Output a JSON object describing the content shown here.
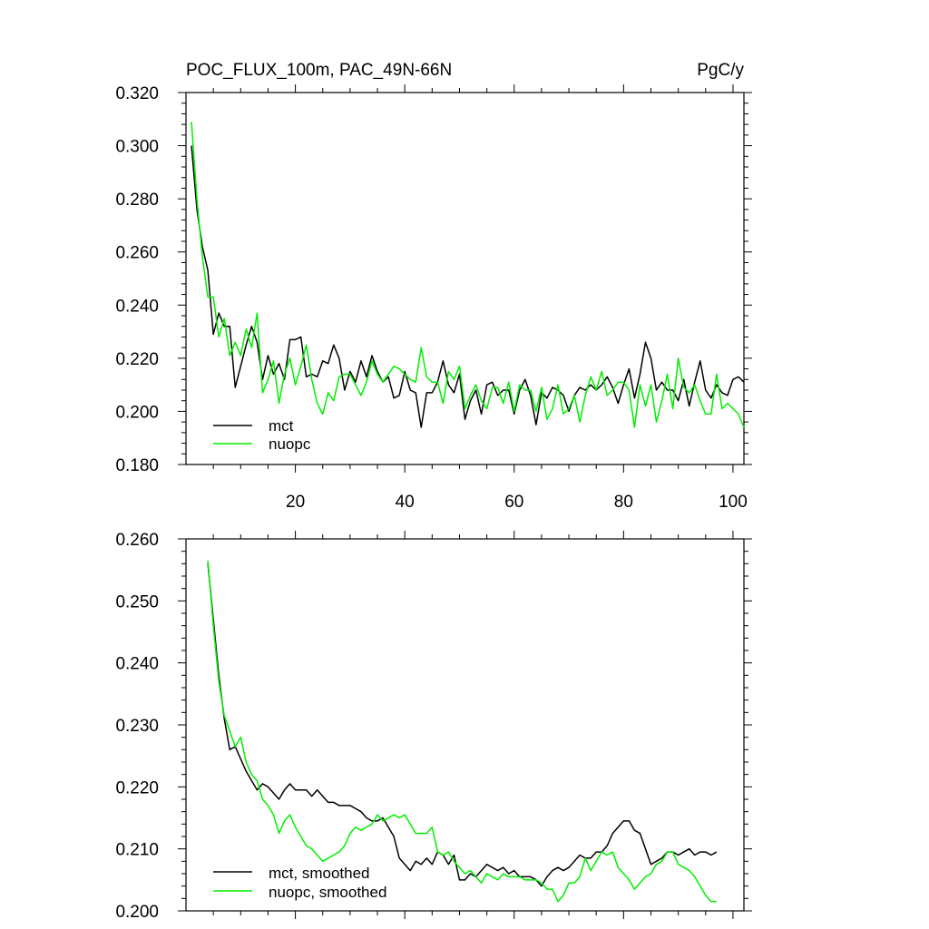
{
  "chart_data": [
    {
      "type": "line",
      "title": "POC_FLUX_100m, PAC_49N-66N",
      "units": "PgC/y",
      "xlim": [
        0,
        102
      ],
      "ylim": [
        0.18,
        0.32
      ],
      "xticks": [
        20,
        40,
        60,
        80,
        100
      ],
      "xtick_labels": [
        "20",
        "40",
        "60",
        "80",
        "100"
      ],
      "yticks": [
        0.18,
        0.2,
        0.22,
        0.24,
        0.26,
        0.28,
        0.3,
        0.32
      ],
      "ytick_labels": [
        "0.180",
        "0.200",
        "0.220",
        "0.240",
        "0.260",
        "0.280",
        "0.300",
        "0.320"
      ],
      "legend_position": "bottom-left",
      "x_start": 1,
      "series": [
        {
          "name": "mct",
          "color": "#000000",
          "values": [
            0.3,
            0.276,
            0.262,
            0.253,
            0.229,
            0.237,
            0.232,
            0.232,
            0.209,
            0.217,
            0.225,
            0.232,
            0.226,
            0.212,
            0.221,
            0.214,
            0.218,
            0.212,
            0.227,
            0.227,
            0.228,
            0.213,
            0.214,
            0.213,
            0.219,
            0.218,
            0.225,
            0.22,
            0.208,
            0.215,
            0.211,
            0.219,
            0.213,
            0.221,
            0.215,
            0.211,
            0.213,
            0.205,
            0.206,
            0.215,
            0.208,
            0.207,
            0.194,
            0.207,
            0.207,
            0.211,
            0.219,
            0.21,
            0.207,
            0.214,
            0.197,
            0.204,
            0.208,
            0.199,
            0.21,
            0.211,
            0.206,
            0.208,
            0.208,
            0.199,
            0.208,
            0.212,
            0.206,
            0.195,
            0.207,
            0.205,
            0.209,
            0.208,
            0.206,
            0.2,
            0.206,
            0.209,
            0.208,
            0.21,
            0.208,
            0.21,
            0.213,
            0.209,
            0.203,
            0.21,
            0.216,
            0.205,
            0.214,
            0.226,
            0.22,
            0.208,
            0.211,
            0.208,
            0.208,
            0.204,
            0.212,
            0.202,
            0.211,
            0.219,
            0.208,
            0.205,
            0.21,
            0.207,
            0.206,
            0.212,
            0.213,
            0.211
          ]
        },
        {
          "name": "nuopc",
          "color": "#00ee00",
          "values": [
            0.309,
            0.28,
            0.258,
            0.243,
            0.243,
            0.228,
            0.235,
            0.221,
            0.226,
            0.221,
            0.231,
            0.224,
            0.237,
            0.207,
            0.212,
            0.219,
            0.203,
            0.214,
            0.22,
            0.21,
            0.217,
            0.225,
            0.212,
            0.203,
            0.199,
            0.207,
            0.204,
            0.213,
            0.214,
            0.214,
            0.21,
            0.206,
            0.211,
            0.219,
            0.214,
            0.211,
            0.214,
            0.217,
            0.216,
            0.214,
            0.212,
            0.211,
            0.224,
            0.213,
            0.211,
            0.211,
            0.203,
            0.215,
            0.212,
            0.217,
            0.201,
            0.206,
            0.21,
            0.204,
            0.201,
            0.209,
            0.209,
            0.203,
            0.211,
            0.2,
            0.21,
            0.208,
            0.208,
            0.2,
            0.209,
            0.197,
            0.201,
            0.21,
            0.199,
            0.201,
            0.206,
            0.196,
            0.206,
            0.213,
            0.208,
            0.215,
            0.206,
            0.208,
            0.211,
            0.211,
            0.208,
            0.194,
            0.21,
            0.202,
            0.21,
            0.196,
            0.204,
            0.214,
            0.201,
            0.22,
            0.209,
            0.207,
            0.21,
            0.204,
            0.199,
            0.199,
            0.214,
            0.201,
            0.203,
            0.201,
            0.199,
            0.194
          ]
        }
      ]
    },
    {
      "type": "line",
      "title": "",
      "units": "",
      "xlim": [
        0,
        102
      ],
      "ylim": [
        0.2,
        0.26
      ],
      "xticks": [
        20,
        40,
        60,
        80,
        100
      ],
      "yticks": [
        0.2,
        0.21,
        0.22,
        0.23,
        0.24,
        0.25,
        0.26
      ],
      "ytick_labels": [
        "0.200",
        "0.210",
        "0.220",
        "0.230",
        "0.240",
        "0.250",
        "0.260"
      ],
      "legend_position": "bottom-left",
      "x_start": 4,
      "series": [
        {
          "name": "mct, smoothed",
          "color": "#000000",
          "values": [
            0.256,
            0.247,
            0.238,
            0.231,
            0.226,
            0.2265,
            0.2245,
            0.2225,
            0.221,
            0.2195,
            0.2205,
            0.22,
            0.219,
            0.218,
            0.2195,
            0.2205,
            0.2195,
            0.2195,
            0.2195,
            0.2185,
            0.2195,
            0.2185,
            0.2175,
            0.2175,
            0.217,
            0.217,
            0.217,
            0.2165,
            0.216,
            0.215,
            0.2145,
            0.2145,
            0.215,
            0.2135,
            0.212,
            0.2085,
            0.2075,
            0.2065,
            0.208,
            0.2075,
            0.2085,
            0.2075,
            0.2095,
            0.209,
            0.2075,
            0.209,
            0.205,
            0.205,
            0.206,
            0.2055,
            0.2065,
            0.2075,
            0.207,
            0.2065,
            0.207,
            0.206,
            0.2065,
            0.2055,
            0.2055,
            0.2055,
            0.205,
            0.204,
            0.2055,
            0.2065,
            0.207,
            0.2065,
            0.207,
            0.208,
            0.209,
            0.2085,
            0.2085,
            0.2095,
            0.2095,
            0.2105,
            0.2125,
            0.2135,
            0.2145,
            0.2145,
            0.213,
            0.2125,
            0.21,
            0.2075,
            0.208,
            0.2085,
            0.2095,
            0.2095,
            0.209,
            0.2095,
            0.21,
            0.209,
            0.2095,
            0.2095,
            0.209,
            0.2095
          ]
        },
        {
          "name": "nuopc, smoothed",
          "color": "#00ee00",
          "values": [
            0.2565,
            0.246,
            0.237,
            0.2315,
            0.229,
            0.2265,
            0.228,
            0.224,
            0.222,
            0.221,
            0.218,
            0.217,
            0.2155,
            0.2125,
            0.2145,
            0.2155,
            0.2135,
            0.212,
            0.2105,
            0.21,
            0.209,
            0.208,
            0.2085,
            0.209,
            0.2095,
            0.2105,
            0.2125,
            0.2135,
            0.213,
            0.2135,
            0.214,
            0.2155,
            0.2145,
            0.215,
            0.2155,
            0.215,
            0.2155,
            0.214,
            0.2125,
            0.2125,
            0.2125,
            0.2135,
            0.2095,
            0.209,
            0.2095,
            0.208,
            0.207,
            0.206,
            0.2065,
            0.2055,
            0.2045,
            0.206,
            0.2055,
            0.205,
            0.206,
            0.2055,
            0.2055,
            0.2055,
            0.205,
            0.205,
            0.205,
            0.2045,
            0.2035,
            0.2035,
            0.2015,
            0.2025,
            0.2045,
            0.2045,
            0.2055,
            0.2085,
            0.2065,
            0.208,
            0.2095,
            0.209,
            0.2095,
            0.207,
            0.206,
            0.205,
            0.2035,
            0.2045,
            0.2055,
            0.206,
            0.2075,
            0.208,
            0.2095,
            0.2095,
            0.2075,
            0.207,
            0.2065,
            0.2055,
            0.204,
            0.2025,
            0.2015,
            0.2015
          ]
        }
      ]
    }
  ]
}
